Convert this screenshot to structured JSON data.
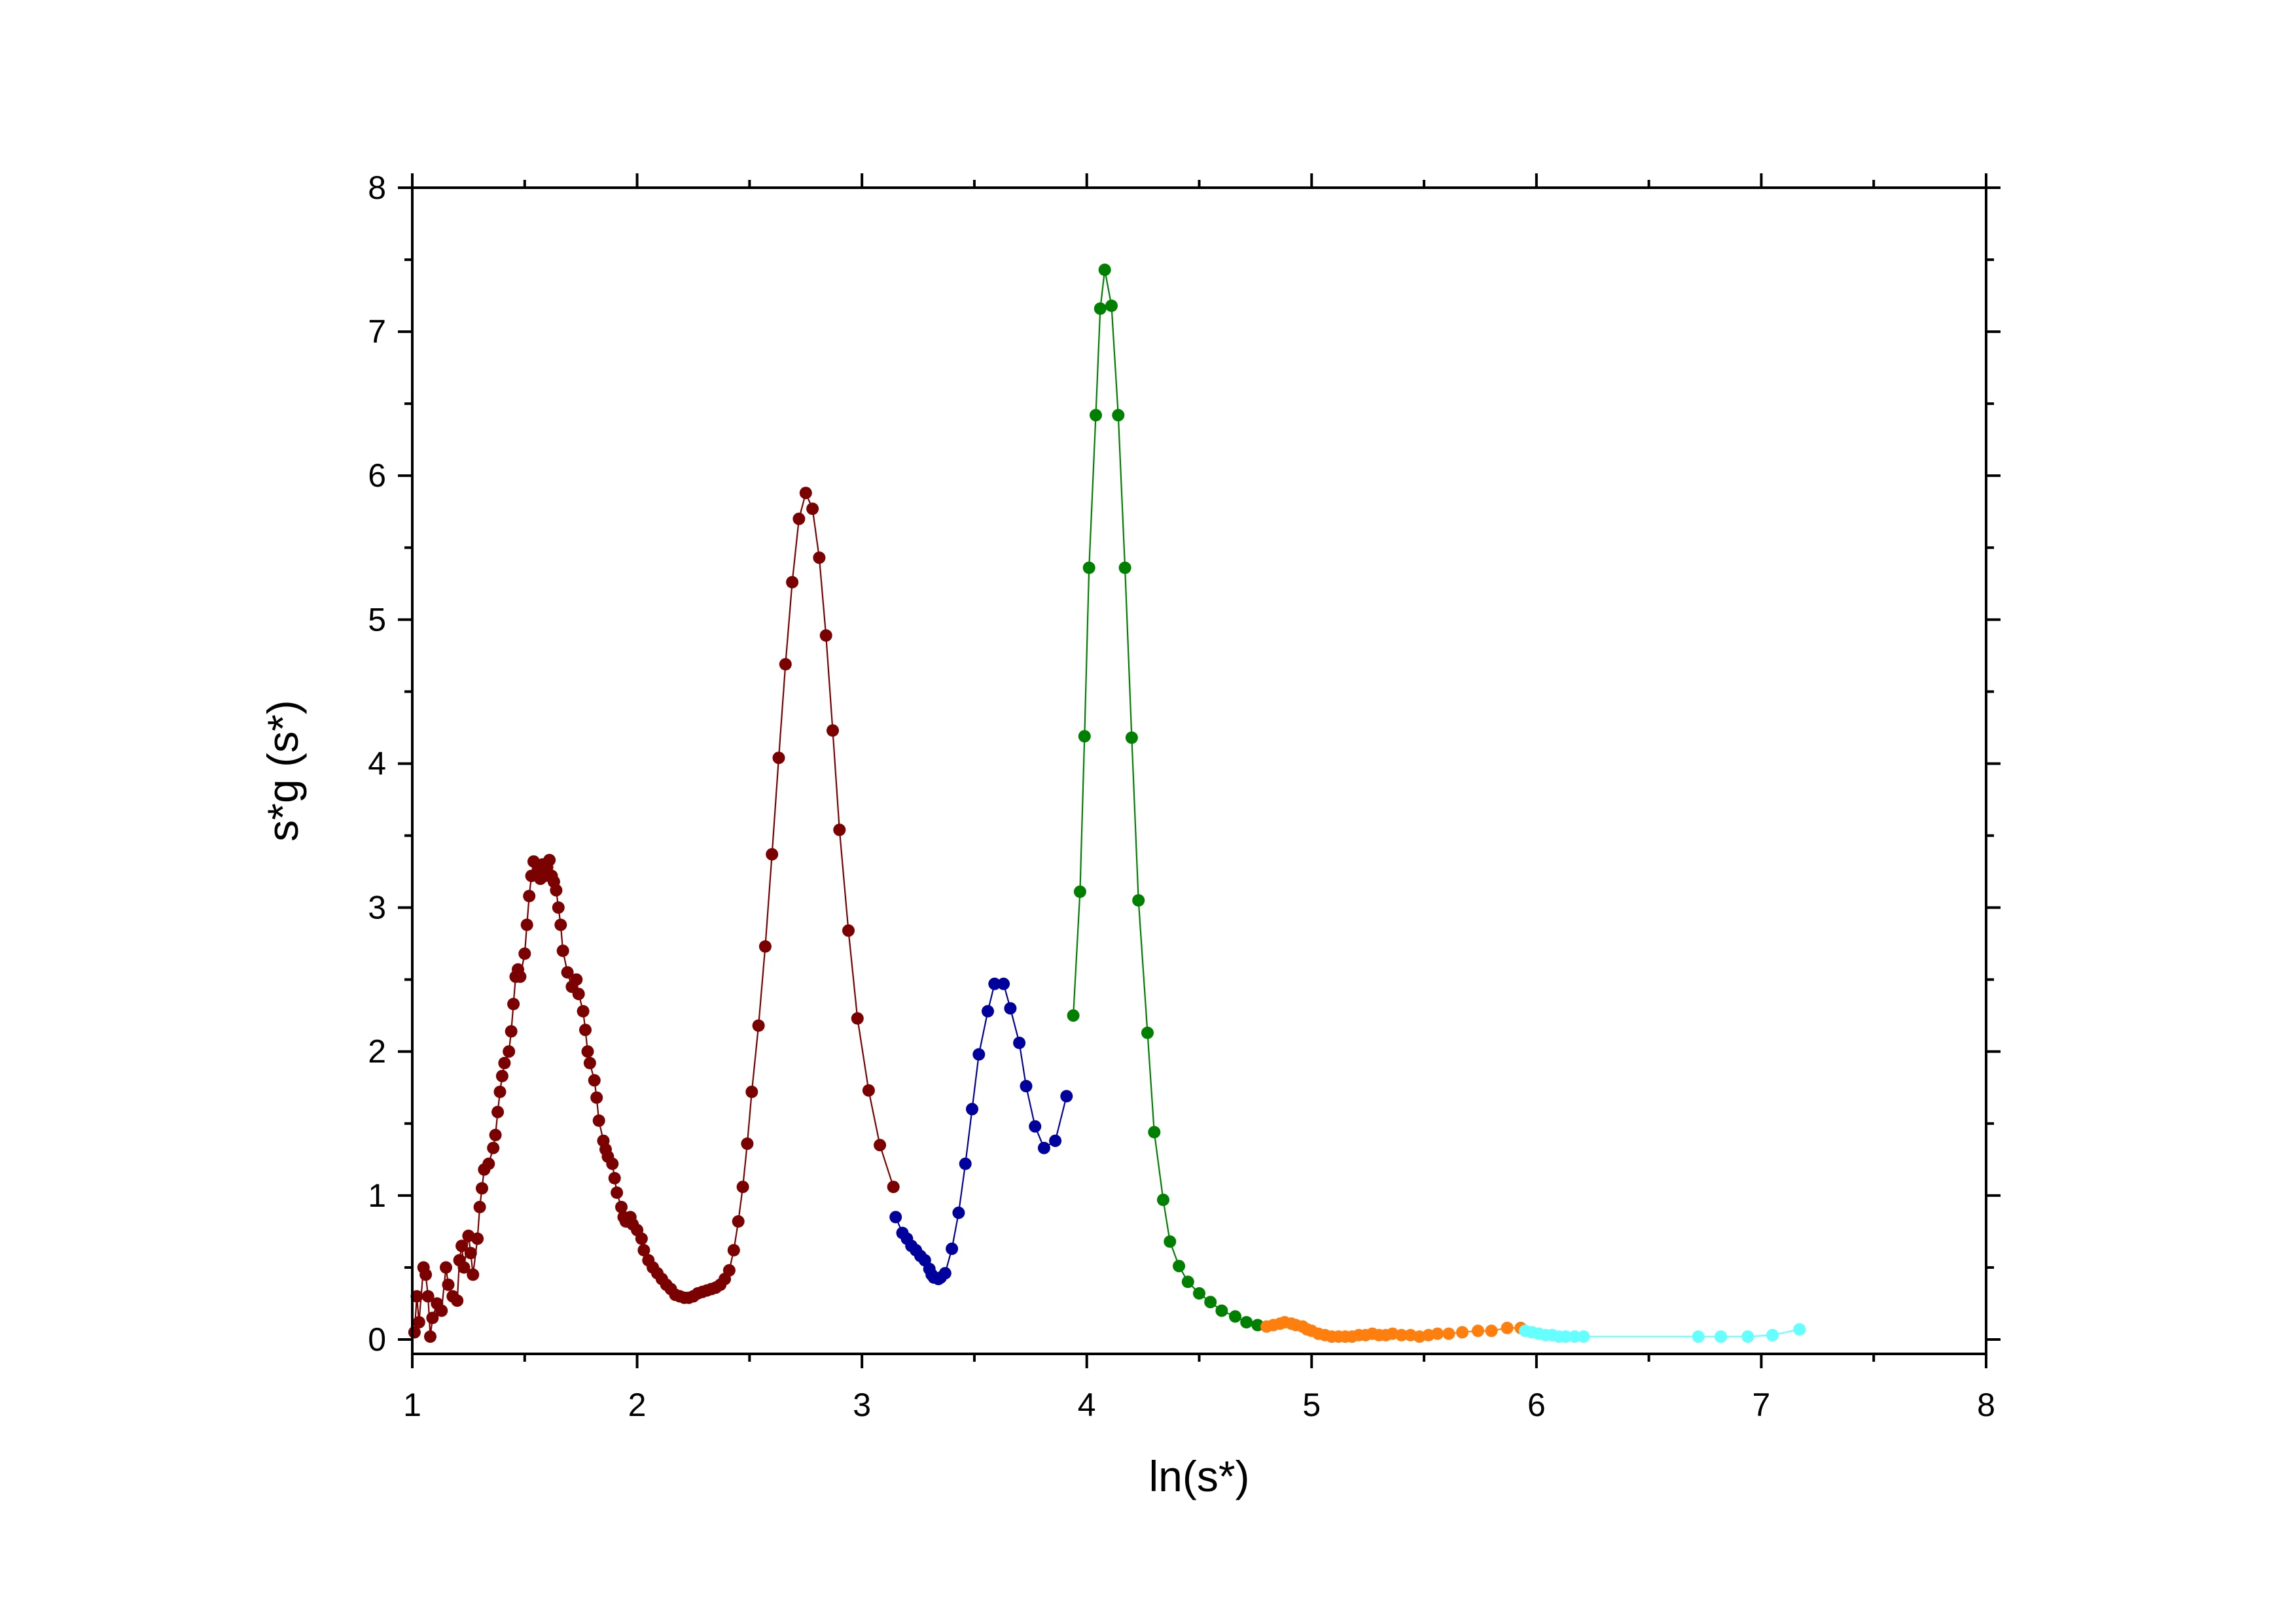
{
  "chart_data": {
    "type": "scatter",
    "xlabel": "ln(s*)",
    "ylabel": "s*g (s*)",
    "xlim": [
      1,
      8
    ],
    "ylim": [
      -0.1,
      8
    ],
    "x_ticks": [
      "1",
      "2",
      "3",
      "4",
      "5",
      "6",
      "7",
      "8"
    ],
    "y_ticks": [
      "0",
      "1",
      "2",
      "3",
      "4",
      "5",
      "6",
      "7",
      "8"
    ],
    "grid": false,
    "legend": "none",
    "series": [
      {
        "color": "#7b0000",
        "points": [
          [
            1.01,
            0.05
          ],
          [
            1.02,
            0.3
          ],
          [
            1.03,
            0.12
          ],
          [
            1.05,
            0.5
          ],
          [
            1.06,
            0.45
          ],
          [
            1.07,
            0.3
          ],
          [
            1.08,
            0.02
          ],
          [
            1.09,
            0.15
          ],
          [
            1.11,
            0.25
          ],
          [
            1.13,
            0.2
          ],
          [
            1.15,
            0.5
          ],
          [
            1.16,
            0.38
          ],
          [
            1.18,
            0.3
          ],
          [
            1.2,
            0.27
          ],
          [
            1.21,
            0.55
          ],
          [
            1.22,
            0.65
          ],
          [
            1.23,
            0.5
          ],
          [
            1.25,
            0.72
          ],
          [
            1.26,
            0.6
          ],
          [
            1.27,
            0.45
          ],
          [
            1.29,
            0.7
          ],
          [
            1.3,
            0.92
          ],
          [
            1.31,
            1.05
          ],
          [
            1.32,
            1.18
          ],
          [
            1.34,
            1.22
          ],
          [
            1.36,
            1.33
          ],
          [
            1.37,
            1.42
          ],
          [
            1.38,
            1.58
          ],
          [
            1.39,
            1.72
          ],
          [
            1.4,
            1.83
          ],
          [
            1.41,
            1.92
          ],
          [
            1.43,
            2.0
          ],
          [
            1.44,
            2.14
          ],
          [
            1.45,
            2.33
          ],
          [
            1.46,
            2.52
          ],
          [
            1.47,
            2.57
          ],
          [
            1.48,
            2.52
          ],
          [
            1.5,
            2.68
          ],
          [
            1.51,
            2.88
          ],
          [
            1.52,
            3.08
          ],
          [
            1.53,
            3.22
          ],
          [
            1.54,
            3.32
          ],
          [
            1.56,
            3.25
          ],
          [
            1.57,
            3.2
          ],
          [
            1.58,
            3.3
          ],
          [
            1.59,
            3.22
          ],
          [
            1.6,
            3.28
          ],
          [
            1.61,
            3.33
          ],
          [
            1.62,
            3.22
          ],
          [
            1.63,
            3.18
          ],
          [
            1.64,
            3.12
          ],
          [
            1.65,
            3.0
          ],
          [
            1.66,
            2.88
          ],
          [
            1.67,
            2.7
          ],
          [
            1.69,
            2.55
          ],
          [
            1.71,
            2.45
          ],
          [
            1.73,
            2.5
          ],
          [
            1.74,
            2.4
          ],
          [
            1.76,
            2.28
          ],
          [
            1.77,
            2.15
          ],
          [
            1.78,
            2.0
          ],
          [
            1.79,
            1.92
          ],
          [
            1.81,
            1.8
          ],
          [
            1.82,
            1.68
          ],
          [
            1.83,
            1.52
          ],
          [
            1.85,
            1.38
          ],
          [
            1.86,
            1.32
          ],
          [
            1.87,
            1.27
          ],
          [
            1.89,
            1.22
          ],
          [
            1.9,
            1.12
          ],
          [
            1.91,
            1.02
          ],
          [
            1.93,
            0.92
          ],
          [
            1.94,
            0.85
          ],
          [
            1.95,
            0.82
          ],
          [
            1.97,
            0.85
          ],
          [
            1.98,
            0.8
          ],
          [
            2.0,
            0.76
          ],
          [
            2.02,
            0.7
          ],
          [
            2.03,
            0.62
          ],
          [
            2.05,
            0.55
          ],
          [
            2.07,
            0.5
          ],
          [
            2.09,
            0.46
          ],
          [
            2.11,
            0.42
          ],
          [
            2.13,
            0.38
          ],
          [
            2.15,
            0.35
          ],
          [
            2.17,
            0.31
          ],
          [
            2.19,
            0.3
          ],
          [
            2.21,
            0.29
          ],
          [
            2.23,
            0.29
          ],
          [
            2.25,
            0.3
          ],
          [
            2.27,
            0.32
          ],
          [
            2.29,
            0.33
          ],
          [
            2.31,
            0.34
          ],
          [
            2.33,
            0.35
          ],
          [
            2.35,
            0.36
          ],
          [
            2.37,
            0.38
          ],
          [
            2.39,
            0.42
          ],
          [
            2.41,
            0.48
          ],
          [
            2.43,
            0.62
          ],
          [
            2.45,
            0.82
          ],
          [
            2.47,
            1.06
          ],
          [
            2.49,
            1.36
          ],
          [
            2.51,
            1.72
          ],
          [
            2.54,
            2.18
          ],
          [
            2.57,
            2.73
          ],
          [
            2.6,
            3.37
          ],
          [
            2.63,
            4.04
          ],
          [
            2.66,
            4.69
          ],
          [
            2.69,
            5.26
          ],
          [
            2.72,
            5.7
          ],
          [
            2.75,
            5.88
          ],
          [
            2.78,
            5.77
          ],
          [
            2.81,
            5.43
          ],
          [
            2.84,
            4.89
          ],
          [
            2.87,
            4.23
          ],
          [
            2.9,
            3.54
          ],
          [
            2.94,
            2.84
          ],
          [
            2.98,
            2.23
          ],
          [
            3.03,
            1.73
          ],
          [
            3.08,
            1.35
          ],
          [
            3.14,
            1.06
          ]
        ]
      },
      {
        "color": "#00009c",
        "points": [
          [
            3.15,
            0.85
          ],
          [
            3.18,
            0.74
          ],
          [
            3.2,
            0.7
          ],
          [
            3.22,
            0.65
          ],
          [
            3.24,
            0.62
          ],
          [
            3.26,
            0.58
          ],
          [
            3.28,
            0.55
          ],
          [
            3.3,
            0.49
          ],
          [
            3.31,
            0.45
          ],
          [
            3.32,
            0.43
          ],
          [
            3.34,
            0.42
          ],
          [
            3.35,
            0.43
          ],
          [
            3.37,
            0.46
          ],
          [
            3.4,
            0.63
          ],
          [
            3.43,
            0.88
          ],
          [
            3.46,
            1.22
          ],
          [
            3.49,
            1.6
          ],
          [
            3.52,
            1.98
          ],
          [
            3.56,
            2.28
          ],
          [
            3.59,
            2.47
          ],
          [
            3.63,
            2.47
          ],
          [
            3.66,
            2.3
          ],
          [
            3.7,
            2.06
          ],
          [
            3.73,
            1.76
          ],
          [
            3.77,
            1.48
          ],
          [
            3.81,
            1.33
          ],
          [
            3.86,
            1.38
          ],
          [
            3.91,
            1.69
          ]
        ]
      },
      {
        "color": "#008000",
        "points": [
          [
            3.94,
            2.25
          ],
          [
            3.97,
            3.11
          ],
          [
            3.99,
            4.19
          ],
          [
            4.01,
            5.36
          ],
          [
            4.04,
            6.42
          ],
          [
            4.06,
            7.16
          ],
          [
            4.08,
            7.43
          ],
          [
            4.11,
            7.18
          ],
          [
            4.14,
            6.42
          ],
          [
            4.17,
            5.36
          ],
          [
            4.2,
            4.18
          ],
          [
            4.23,
            3.05
          ],
          [
            4.27,
            2.13
          ],
          [
            4.3,
            1.44
          ],
          [
            4.34,
            0.97
          ],
          [
            4.37,
            0.68
          ],
          [
            4.41,
            0.51
          ],
          [
            4.45,
            0.4
          ],
          [
            4.5,
            0.32
          ],
          [
            4.55,
            0.26
          ],
          [
            4.6,
            0.2
          ],
          [
            4.66,
            0.16
          ],
          [
            4.71,
            0.12
          ],
          [
            4.76,
            0.1
          ]
        ]
      },
      {
        "color": "#ff7f0e",
        "points": [
          [
            4.8,
            0.09
          ],
          [
            4.83,
            0.1
          ],
          [
            4.86,
            0.11
          ],
          [
            4.88,
            0.12
          ],
          [
            4.91,
            0.11
          ],
          [
            4.93,
            0.1
          ],
          [
            4.96,
            0.09
          ],
          [
            4.98,
            0.07
          ],
          [
            5.0,
            0.06
          ],
          [
            5.03,
            0.04
          ],
          [
            5.06,
            0.03
          ],
          [
            5.09,
            0.02
          ],
          [
            5.12,
            0.02
          ],
          [
            5.15,
            0.02
          ],
          [
            5.18,
            0.02
          ],
          [
            5.21,
            0.03
          ],
          [
            5.24,
            0.03
          ],
          [
            5.27,
            0.04
          ],
          [
            5.3,
            0.03
          ],
          [
            5.33,
            0.03
          ],
          [
            5.36,
            0.04
          ],
          [
            5.4,
            0.03
          ],
          [
            5.44,
            0.03
          ],
          [
            5.48,
            0.02
          ],
          [
            5.52,
            0.03
          ],
          [
            5.56,
            0.04
          ],
          [
            5.61,
            0.04
          ],
          [
            5.67,
            0.05
          ],
          [
            5.74,
            0.06
          ],
          [
            5.8,
            0.06
          ],
          [
            5.87,
            0.08
          ],
          [
            5.93,
            0.08
          ]
        ]
      },
      {
        "color": "#66ffff",
        "points": [
          [
            5.95,
            0.06
          ],
          [
            5.98,
            0.05
          ],
          [
            6.01,
            0.04
          ],
          [
            6.04,
            0.03
          ],
          [
            6.07,
            0.03
          ],
          [
            6.1,
            0.02
          ],
          [
            6.13,
            0.02
          ],
          [
            6.17,
            0.02
          ],
          [
            6.21,
            0.02
          ],
          [
            6.72,
            0.02
          ],
          [
            6.82,
            0.02
          ],
          [
            6.94,
            0.02
          ],
          [
            7.05,
            0.03
          ],
          [
            7.17,
            0.07
          ]
        ]
      }
    ]
  }
}
